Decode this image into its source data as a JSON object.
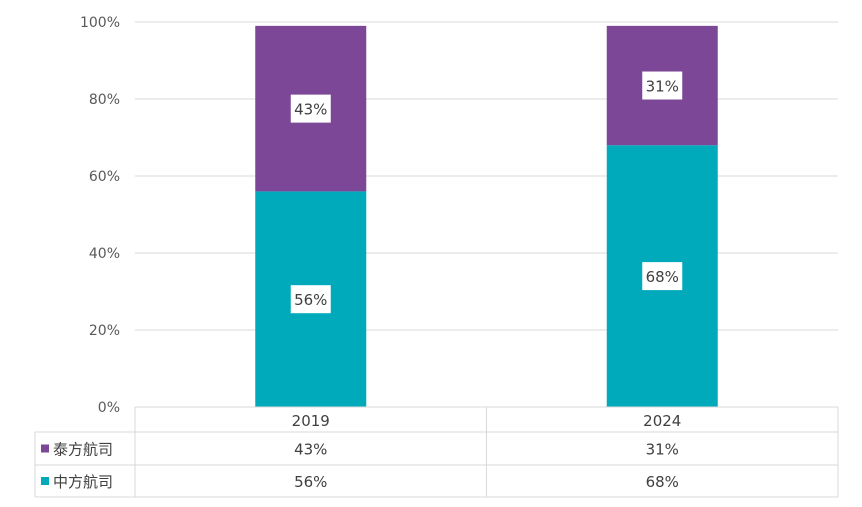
{
  "chart_data": {
    "type": "bar",
    "stacked": true,
    "categories": [
      "2019",
      "2024"
    ],
    "series": [
      {
        "name": "中方航司",
        "values": [
          56,
          68
        ],
        "labels": [
          "56%",
          "68%"
        ],
        "color": "#00AABB"
      },
      {
        "name": "泰方航司",
        "values": [
          43,
          31
        ],
        "labels": [
          "43%",
          "31%"
        ],
        "color": "#7B4796"
      }
    ],
    "ylim": [
      0,
      100
    ],
    "yticks": [
      "0%",
      "20%",
      "40%",
      "60%",
      "80%",
      "100%"
    ],
    "grid": true,
    "data_table": {
      "rows": [
        {
          "series": "泰方航司",
          "cells": [
            "43%",
            "31%"
          ]
        },
        {
          "series": "中方航司",
          "cells": [
            "56%",
            "68%"
          ]
        }
      ]
    }
  }
}
